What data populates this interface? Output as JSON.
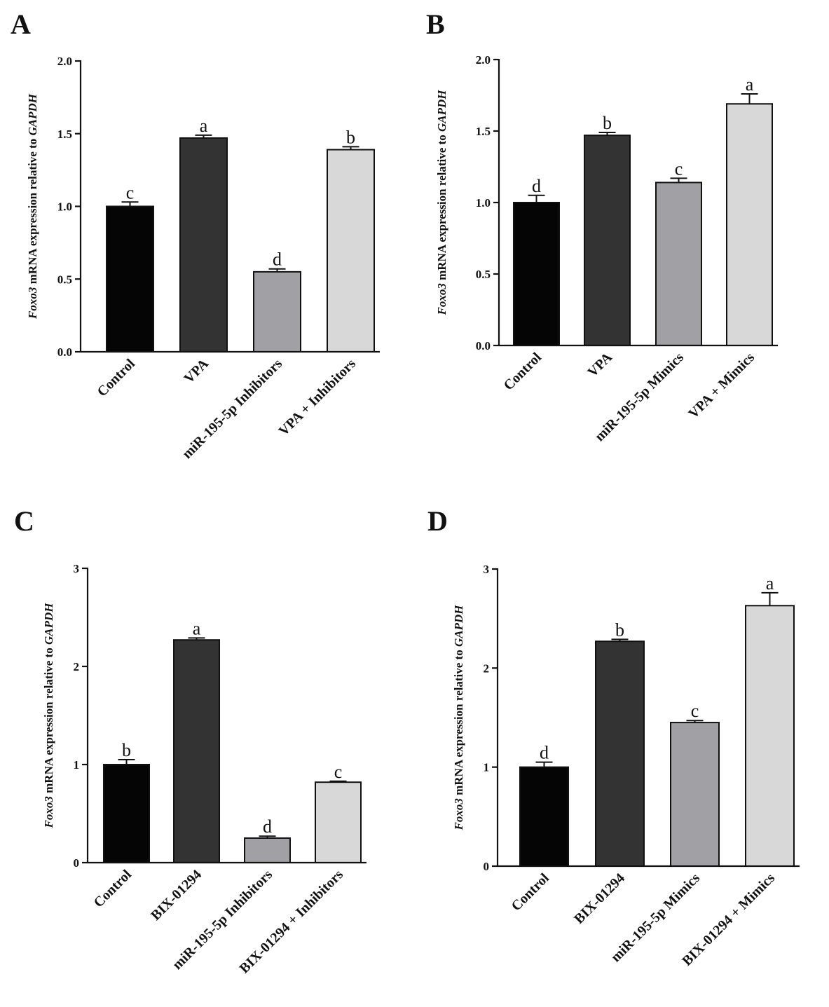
{
  "chart_data": [
    {
      "panel": "A",
      "type": "bar",
      "ylabel": {
        "gene": "Foxo3",
        "middle": " mRNA expression relative to ",
        "ref": "GAPDH"
      },
      "ylim": [
        0,
        2.0
      ],
      "yticks": [
        "0.0",
        "0.5",
        "1.0",
        "1.5",
        "2.0"
      ],
      "categories": [
        "Control",
        "VPA",
        "miR-195-5p Inhibitors",
        "VPA + Inhibitors"
      ],
      "values": [
        1.0,
        1.47,
        0.55,
        1.39
      ],
      "errors": [
        0.03,
        0.02,
        0.02,
        0.02
      ],
      "significance": [
        "c",
        "a",
        "d",
        "b"
      ],
      "colors": [
        "#050505",
        "#333333",
        "#a0a0a5",
        "#d8d8d8"
      ]
    },
    {
      "panel": "B",
      "type": "bar",
      "ylabel": {
        "gene": "Foxo3",
        "middle": " mRNA expression relative to ",
        "ref": "GAPDH"
      },
      "ylim": [
        0,
        2.0
      ],
      "yticks": [
        "0.0",
        "0.5",
        "1.0",
        "1.5",
        "2.0"
      ],
      "categories": [
        "Control",
        "VPA",
        "miR-195-5p Mimics",
        "VPA + Mimics"
      ],
      "values": [
        1.0,
        1.47,
        1.14,
        1.69
      ],
      "errors": [
        0.05,
        0.02,
        0.03,
        0.07
      ],
      "significance": [
        "d",
        "b",
        "c",
        "a"
      ],
      "colors": [
        "#050505",
        "#333333",
        "#a0a0a5",
        "#d8d8d8"
      ]
    },
    {
      "panel": "C",
      "type": "bar",
      "ylabel": {
        "gene": "Foxo3",
        "middle": " mRNA expression relative to ",
        "ref": "GAPDH"
      },
      "ylim": [
        0,
        3
      ],
      "yticks": [
        "0",
        "1",
        "2",
        "3"
      ],
      "categories": [
        "Control",
        "BIX-01294",
        "miR-195-5p Inhibitors",
        "BIX-01294 + Inhibitors"
      ],
      "values": [
        1.0,
        2.27,
        0.25,
        0.82
      ],
      "errors": [
        0.05,
        0.02,
        0.02,
        0.01
      ],
      "significance": [
        "b",
        "a",
        "d",
        "c"
      ],
      "colors": [
        "#050505",
        "#333333",
        "#a0a0a5",
        "#d8d8d8"
      ]
    },
    {
      "panel": "D",
      "type": "bar",
      "ylabel": {
        "gene": "Foxo3",
        "middle": " mRNA expression relative to ",
        "ref": "GAPDH"
      },
      "ylim": [
        0,
        3
      ],
      "yticks": [
        "0",
        "1",
        "2",
        "3"
      ],
      "categories": [
        "Control",
        "BIX-01294",
        "miR-195-5p Mimics",
        "BIX-01294 + Mimics"
      ],
      "values": [
        1.0,
        2.27,
        1.45,
        2.63
      ],
      "errors": [
        0.05,
        0.02,
        0.02,
        0.13
      ],
      "significance": [
        "d",
        "b",
        "c",
        "a"
      ],
      "colors": [
        "#050505",
        "#333333",
        "#a0a0a5",
        "#d8d8d8"
      ]
    }
  ]
}
